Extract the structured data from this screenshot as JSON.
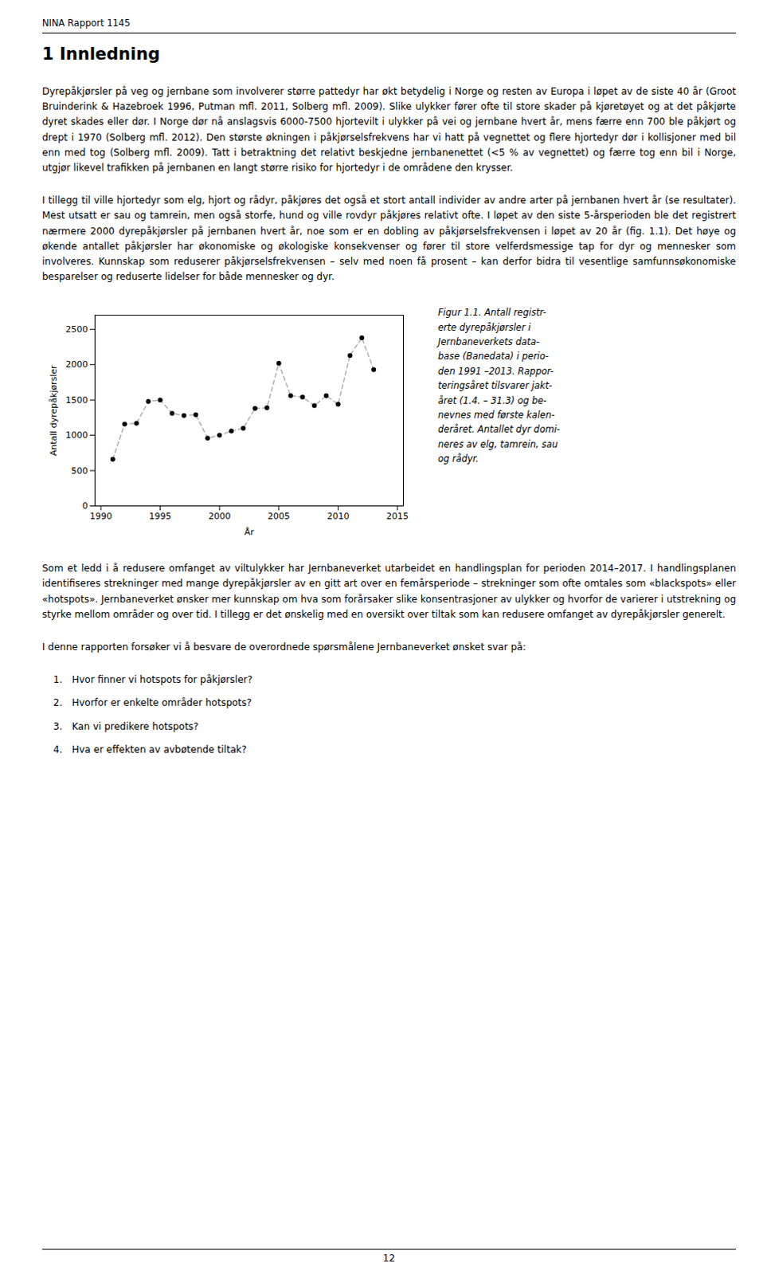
{
  "header": "NINA Rapport 1145",
  "section_title": "1  Innledning",
  "body_text_before_figure": [
    "Dyrepåkjørsler på veg og jernbane som involverer større pattedyr har økt betydelig i Norge og resten av Europa i løpet av de siste 40 år (Groot Bruinderink & Hazebroek 1996, Putman mfl. 2011, Solberg mfl. 2009). Slike ulykker fører ofte til store skader på kjøretøyet og at det påkjørte dyret skades eller dør. I Norge dør nå anslagsvis 6000-7500 hjortevilt i ulykker på vei og jernbane hvert år, mens færre enn 700 ble påkjørt og drept i 1970 (Solberg mfl. 2012). Den største økningen i påkjørselsfrekvens har vi hatt på vegnettet og flere hjortedyr dør i kollisjoner med bil enn med tog (Solberg mfl. 2009). Tatt i betraktning det relativt beskjedne jernbanenettet (<5 % av vegnettet) og færre tog enn bil i Norge, utgjør likevel trafikken på jernbanen en langt større risiko for hjortedyr i de områdene den krysser.",
    "I tillegg til ville hjortedyr som elg, hjort og rådyr, påkjøres det også et stort antall individer av andre arter på jernbanen hvert år (se resultater). Mest utsatt er sau og tamrein, men også storfe, hund og ville rovdyr påkjøres relativt ofte. I løpet av den siste 5-årsperioden ble det registrert nærmere 2000 dyrepåkjørsler på jernbanen hvert år, noe som er en dobling av påkjørselsfrekvensen i løpet av 20 år (fig. 1.1). Det høye og økende antallet påkjørsler har økonomiske og økologiske konsekvenser og fører til store velferdsmessige tap for dyr og mennesker som involveres. Kunnskap som reduserer påkjørselsfrekvensen – selv med noen få prosent – kan derfor bidra til vesentlige samfunnsøkonomiske besparelser og reduserte lidelser for både mennesker og dyr."
  ],
  "figure_caption_lines": [
    "Figur  1.1.  Antall registr-",
    "erte  dyrepåkjørsler  i",
    "Jernbaneverkets  data-",
    "base (Banedata) i perio-",
    "den 1991 –2013. Rappor-",
    "teringsåret tilsvarer jakt-",
    "året (1.4. – 31.3) og be-",
    "nevnes med første kalen-",
    "deråret. Antallet dyr domi-",
    "neres av elg, tamrein, sau",
    "og rådyr."
  ],
  "body_text_after_figure": [
    "Som et ledd i å redusere omfanget av viltulykker har Jernbaneverket utarbeidet en handlingsplan for perioden 2014–2017. I handlingsplanen identifiseres strekninger med mange dyrepåkjørsler av en gitt art over en femårsperiode – strekninger som ofte omtales som «blackspots» eller «hotspots». Jernbaneverket ønsker mer kunnskap om hva som forårsaker slike konsentrasjoner av ulykker og hvorfor de varierer i utstrekning og styrke mellom områder og over tid. I tillegg er det ønskelig med en oversikt over tiltak som kan redusere omfanget av dyrepåkjørsler generelt.",
    "I denne rapporten forsøker vi å besvare de overordnede spørsmålene Jernbaneverket ønsket svar på:"
  ],
  "list_items": [
    "1. Hvor finner vi hotspots for påkjørsler?",
    "2. Hvorfor er enkelte områder hotspots?",
    "3. Kan vi predikere hotspots?",
    "4. Hva er effekten av avbøtende tiltak?"
  ],
  "page_number": "12",
  "chart_data": {
    "type": "line",
    "xlabel": "År",
    "ylabel": "Antall dyrepåkjørsler",
    "x": [
      1991,
      1992,
      1993,
      1994,
      1995,
      1996,
      1997,
      1998,
      1999,
      2000,
      2001,
      2002,
      2003,
      2004,
      2005,
      2006,
      2007,
      2008,
      2009,
      2010,
      2011,
      2012,
      2013
    ],
    "values": [
      660,
      1160,
      1170,
      1480,
      1500,
      1310,
      1280,
      1290,
      960,
      1000,
      1060,
      1100,
      1380,
      1390,
      2020,
      1560,
      1540,
      1420,
      1560,
      1440,
      2130,
      2380,
      1930
    ],
    "color": "#b0b0b0",
    "line_style": "dashed",
    "marker": "circle",
    "xlim": [
      1989.5,
      2015.5
    ],
    "xticks": [
      1990,
      1995,
      2000,
      2005,
      2010,
      2015
    ],
    "ylim": [
      0,
      2700
    ],
    "yticks": [
      0,
      500,
      1000,
      1500,
      2000,
      2500
    ],
    "grid": false
  }
}
